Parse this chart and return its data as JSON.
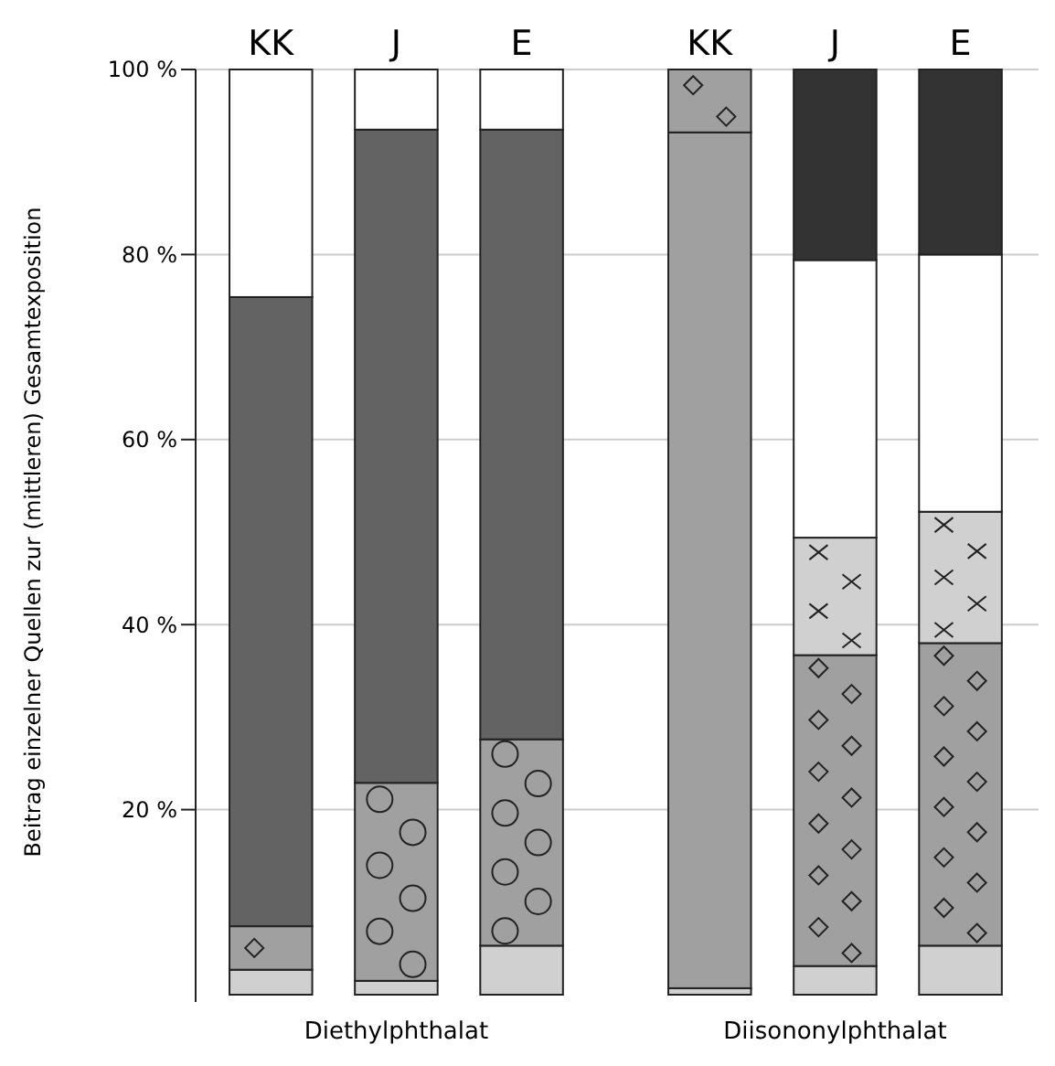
{
  "chart_data": {
    "type": "bar",
    "stacked": true,
    "ylabel": "Beitrag einzelner Quellen zur (mittleren) Gesamtexposition",
    "categories": [
      "KK",
      "J",
      "E",
      "KK",
      "J",
      "E"
    ],
    "annotations": [
      "Diethylphthalat",
      "Diisononylphthalat"
    ],
    "ylim": [
      0,
      100
    ],
    "yticks": [
      {
        "value": 20,
        "label": "20 %"
      },
      {
        "value": 40,
        "label": "40 %"
      },
      {
        "value": 60,
        "label": "60 %"
      },
      {
        "value": 80,
        "label": "80 %"
      },
      {
        "value": 100,
        "label": "100 %"
      }
    ],
    "grid": "y",
    "series": [
      {
        "color": "#d0d0d0",
        "values": [
          2.7,
          1.5,
          5.3,
          0.7,
          3.1,
          5.3
        ]
      },
      {
        "color": "#a0a0a0",
        "marker": "circle",
        "values": [
          null,
          21.4,
          22.3,
          null,
          null,
          null
        ]
      },
      {
        "color": "#a0a0a0",
        "values": [
          null,
          null,
          null,
          92.5,
          null,
          null
        ]
      },
      {
        "color": "#a0a0a0",
        "marker": "diamond",
        "values": [
          4.7,
          null,
          null,
          6.8,
          33.6,
          32.7
        ]
      },
      {
        "color": "#d0d0d0",
        "marker": "cross",
        "values": [
          null,
          null,
          null,
          null,
          12.7,
          14.2
        ]
      },
      {
        "color": "#636363",
        "values": [
          68.0,
          70.6,
          65.9,
          null,
          null,
          null
        ]
      },
      {
        "color": "#ffffff",
        "values": [
          24.6,
          6.5,
          6.5,
          null,
          30.0,
          27.8
        ]
      },
      {
        "color": "#333333",
        "values": [
          null,
          null,
          null,
          null,
          20.6,
          20.0
        ]
      }
    ]
  }
}
